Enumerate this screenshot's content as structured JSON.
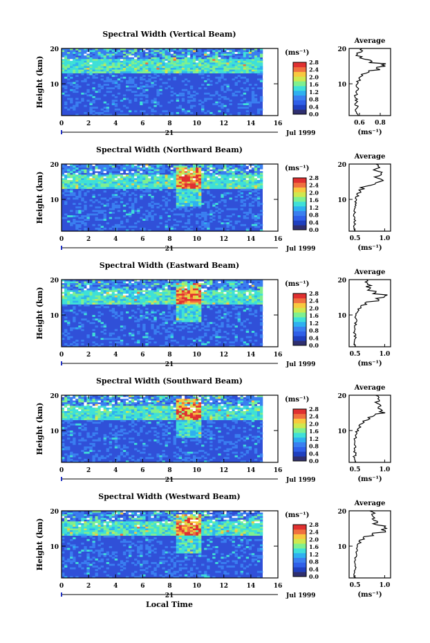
{
  "units_label": "(ms⁻¹)",
  "avg_title": "Average",
  "y_axis_label": "Height (km)",
  "x_axis_label": "Local Time",
  "date_day": "21",
  "date_label": "Jul 1999",
  "colorbar_ticks": [
    "0.0",
    "0.4",
    "0.8",
    "1.2",
    "1.6",
    "2.0",
    "2.4",
    "2.8"
  ],
  "colors": {
    "colormap": [
      "#2f2f6f",
      "#1f3fbf",
      "#2f5fe8",
      "#3a7ff0",
      "#2fb0f0",
      "#3fe0d8",
      "#7ff08f",
      "#cfe84f",
      "#f8c83f",
      "#f0703f",
      "#e03030"
    ],
    "background": "#3050d8"
  },
  "chart_data": [
    {
      "type": "heatmap",
      "title": "Spectral Width (Vertical Beam)",
      "xlabel": "",
      "ylabel": "Height (km)",
      "x_ticks": [
        "0",
        "2",
        "4",
        "6",
        "8",
        "10",
        "12",
        "14",
        "16"
      ],
      "y_ticks": [
        "10",
        "20"
      ],
      "xlim": [
        0,
        16
      ],
      "ylim": [
        1,
        20
      ],
      "colorbar": {
        "label": "(ms⁻¹)",
        "range": [
          0,
          2.8
        ]
      },
      "profile": {
        "title": "Average",
        "xlabel": "(ms⁻¹)",
        "x_ticks": [
          "0.6",
          "0.8"
        ],
        "xlim": [
          0.5,
          0.9
        ],
        "height_km": [
          1,
          2,
          3,
          4,
          5,
          6,
          7,
          8,
          9,
          10,
          11,
          12,
          13,
          14,
          15,
          16,
          17,
          18,
          19,
          20
        ],
        "values": [
          0.58,
          0.57,
          0.58,
          0.56,
          0.57,
          0.56,
          0.57,
          0.58,
          0.57,
          0.58,
          0.6,
          0.62,
          0.66,
          0.78,
          0.83,
          0.7,
          0.62,
          0.6,
          0.61,
          0.6
        ]
      }
    },
    {
      "type": "heatmap",
      "title": "Spectral Width (Northward Beam)",
      "xlabel": "",
      "ylabel": "Height (km)",
      "x_ticks": [
        "0",
        "2",
        "4",
        "6",
        "8",
        "10",
        "12",
        "14",
        "16"
      ],
      "y_ticks": [
        "10",
        "20"
      ],
      "xlim": [
        0,
        16
      ],
      "ylim": [
        1,
        20
      ],
      "colorbar": {
        "label": "(ms⁻¹)",
        "range": [
          0,
          2.8
        ]
      },
      "profile": {
        "title": "Average",
        "xlabel": "(ms⁻¹)",
        "x_ticks": [
          "0.5",
          "1.0"
        ],
        "xlim": [
          0.4,
          1.1
        ],
        "height_km": [
          1,
          2,
          3,
          4,
          5,
          6,
          7,
          8,
          9,
          10,
          11,
          12,
          13,
          14,
          15,
          16,
          17,
          18,
          19,
          20
        ],
        "values": [
          0.5,
          0.48,
          0.5,
          0.49,
          0.48,
          0.5,
          0.49,
          0.5,
          0.51,
          0.52,
          0.55,
          0.58,
          0.65,
          0.8,
          0.92,
          0.86,
          0.9,
          0.84,
          0.88,
          0.8
        ]
      }
    },
    {
      "type": "heatmap",
      "title": "Spectral Width (Eastward Beam)",
      "xlabel": "",
      "ylabel": "Height (km)",
      "x_ticks": [
        "0",
        "2",
        "4",
        "6",
        "8",
        "10",
        "12",
        "14",
        "16"
      ],
      "y_ticks": [
        "10",
        "20"
      ],
      "xlim": [
        0,
        16
      ],
      "ylim": [
        1,
        20
      ],
      "colorbar": {
        "label": "(ms⁻¹)",
        "range": [
          0,
          2.8
        ]
      },
      "profile": {
        "title": "Average",
        "xlabel": "(ms⁻¹)",
        "x_ticks": [
          "0.5",
          "1.0"
        ],
        "xlim": [
          0.4,
          1.1
        ],
        "height_km": [
          1,
          2,
          3,
          4,
          5,
          6,
          7,
          8,
          9,
          10,
          11,
          12,
          13,
          14,
          15,
          16,
          17,
          18,
          19,
          20
        ],
        "values": [
          0.5,
          0.49,
          0.51,
          0.5,
          0.49,
          0.5,
          0.51,
          0.52,
          0.51,
          0.53,
          0.56,
          0.6,
          0.7,
          0.9,
          1.05,
          0.8,
          0.75,
          0.72,
          0.7,
          0.68
        ]
      }
    },
    {
      "type": "heatmap",
      "title": "Spectral Width (Southward Beam)",
      "xlabel": "",
      "ylabel": "Height (km)",
      "x_ticks": [
        "0",
        "2",
        "4",
        "6",
        "8",
        "10",
        "12",
        "14",
        "16"
      ],
      "y_ticks": [
        "10",
        "20"
      ],
      "xlim": [
        0,
        16
      ],
      "ylim": [
        1,
        20
      ],
      "colorbar": {
        "label": "(ms⁻¹)",
        "range": [
          0,
          2.8
        ]
      },
      "profile": {
        "title": "Average",
        "xlabel": "(ms⁻¹)",
        "x_ticks": [
          "0.5",
          "1.0"
        ],
        "xlim": [
          0.4,
          1.1
        ],
        "height_km": [
          1,
          2,
          3,
          4,
          5,
          6,
          7,
          8,
          9,
          10,
          11,
          12,
          13,
          14,
          15,
          16,
          17,
          18,
          19,
          20
        ],
        "values": [
          0.5,
          0.48,
          0.5,
          0.49,
          0.5,
          0.49,
          0.5,
          0.51,
          0.52,
          0.54,
          0.58,
          0.64,
          0.72,
          0.85,
          0.95,
          0.88,
          0.92,
          0.86,
          0.9,
          0.84
        ]
      }
    },
    {
      "type": "heatmap",
      "title": "Spectral Width (Westward Beam)",
      "xlabel": "Local Time",
      "ylabel": "Height (km)",
      "x_ticks": [
        "0",
        "2",
        "4",
        "6",
        "8",
        "10",
        "12",
        "14",
        "16"
      ],
      "y_ticks": [
        "10",
        "20"
      ],
      "xlim": [
        0,
        16
      ],
      "ylim": [
        1,
        20
      ],
      "colorbar": {
        "label": "(ms⁻¹)",
        "range": [
          0,
          2.8
        ]
      },
      "profile": {
        "title": "Average",
        "xlabel": "(ms⁻¹)",
        "x_ticks": [
          "0.5",
          "1.0"
        ],
        "xlim": [
          0.4,
          1.1
        ],
        "height_km": [
          1,
          2,
          3,
          4,
          5,
          6,
          7,
          8,
          9,
          10,
          11,
          12,
          13,
          14,
          15,
          16,
          17,
          18,
          19,
          20
        ],
        "values": [
          0.5,
          0.49,
          0.5,
          0.51,
          0.5,
          0.49,
          0.51,
          0.52,
          0.53,
          0.55,
          0.58,
          0.65,
          0.8,
          0.98,
          1.02,
          0.85,
          0.82,
          0.8,
          0.78,
          0.76
        ]
      }
    }
  ]
}
